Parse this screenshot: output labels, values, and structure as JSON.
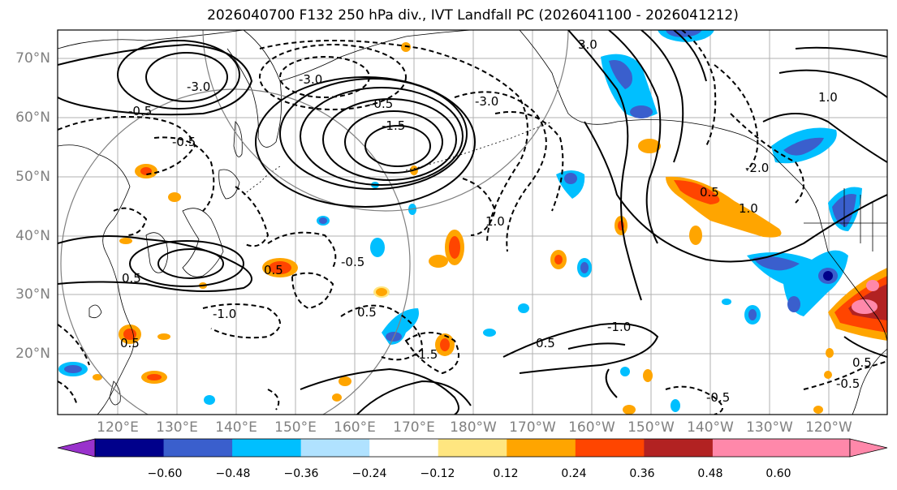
{
  "title": "2026040700 F132 250 hPa div., IVT Landfall PC (2026041100 - 2026041212)",
  "lat_labels": [
    "70°N",
    "60°N",
    "50°N",
    "40°N",
    "30°N",
    "20°N"
  ],
  "lon_labels": [
    "120°E",
    "130°E",
    "140°E",
    "150°E",
    "160°E",
    "170°E",
    "180°W",
    "170°W",
    "160°W",
    "150°W",
    "140°W",
    "130°W",
    "120°W"
  ],
  "colorbar": {
    "ticks": [
      "−0.60",
      "−0.48",
      "−0.36",
      "−0.24",
      "−0.12",
      "0.12",
      "0.24",
      "0.36",
      "0.48",
      "0.60"
    ],
    "colors": [
      "#9932cc",
      "#00008b",
      "#3a5fcd",
      "#00bfff",
      "#b0e2ff",
      "#ffffff",
      "#ffe680",
      "#ffa500",
      "#ff4500",
      "#b22222",
      "#ff88aa",
      "#ff88aa"
    ]
  },
  "contour_labels": [
    "-3.0",
    "-0.5",
    "-0.5",
    "-1.5",
    "-3.0",
    "-3.0",
    "-0.5",
    "0.5",
    "1.0",
    "-2.0",
    "0.5",
    "1.0",
    "0.5",
    "-1.0",
    "-1.5",
    "1.0",
    "-0.5",
    "0.5",
    "-1.0",
    "0.5",
    "-0.5",
    "0.5",
    "0.5",
    "3.0",
    "-0.5"
  ],
  "colors": {
    "land": "#ffffff",
    "grid": "#b0b0b0",
    "border": "#000000"
  }
}
